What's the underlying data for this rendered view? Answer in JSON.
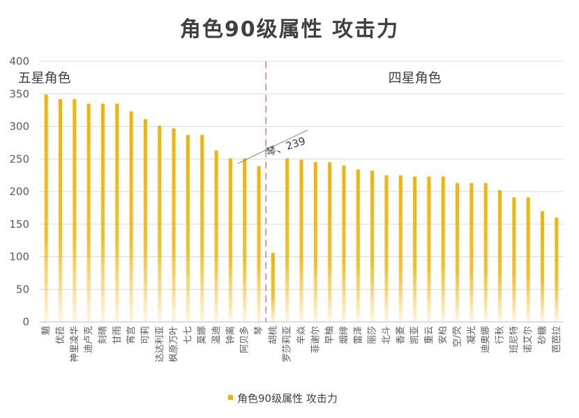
{
  "chart_data": {
    "type": "bar",
    "title": "角色90级属性 攻击力",
    "legend": {
      "label": "角色90级属性 攻击力",
      "position": "bottom"
    },
    "ylim": [
      0,
      400
    ],
    "yticks": [
      0,
      50,
      100,
      150,
      200,
      250,
      300,
      350,
      400
    ],
    "grid": true,
    "bar_color": "#F3B300",
    "divider_color": "#E07A7A",
    "categories": [
      "魈",
      "优菈",
      "神里凌华",
      "迪卢克",
      "刻晴",
      "甘雨",
      "宵宫",
      "可莉",
      "达达利亚",
      "枫原万叶",
      "七七",
      "莫娜",
      "温迪",
      "钟离",
      "阿贝多",
      "琴",
      "胡桃",
      "罗莎莉亚",
      "辛焱",
      "菲谢尔",
      "早柚",
      "烟绯",
      "雷泽",
      "丽莎",
      "北斗",
      "香菱",
      "凯亚",
      "重云",
      "安柏",
      "空/荧",
      "凝光",
      "迪奥娜",
      "行秋",
      "班尼特",
      "诺艾尔",
      "砂糖",
      "芭芭拉"
    ],
    "values": [
      349,
      342,
      342,
      335,
      335,
      335,
      323,
      311,
      301,
      297,
      287,
      287,
      263,
      251,
      251,
      239,
      106,
      251,
      249,
      245,
      245,
      240,
      234,
      232,
      225,
      225,
      223,
      223,
      223,
      213,
      213,
      213,
      202,
      191,
      191,
      170,
      160
    ],
    "groups": [
      {
        "label": "五星角色",
        "start": 0,
        "end": 15
      },
      {
        "label": "四星角色",
        "start": 16,
        "end": 36
      }
    ],
    "annotation": {
      "text": "琴、239",
      "target_index": 15,
      "value": 239
    }
  }
}
